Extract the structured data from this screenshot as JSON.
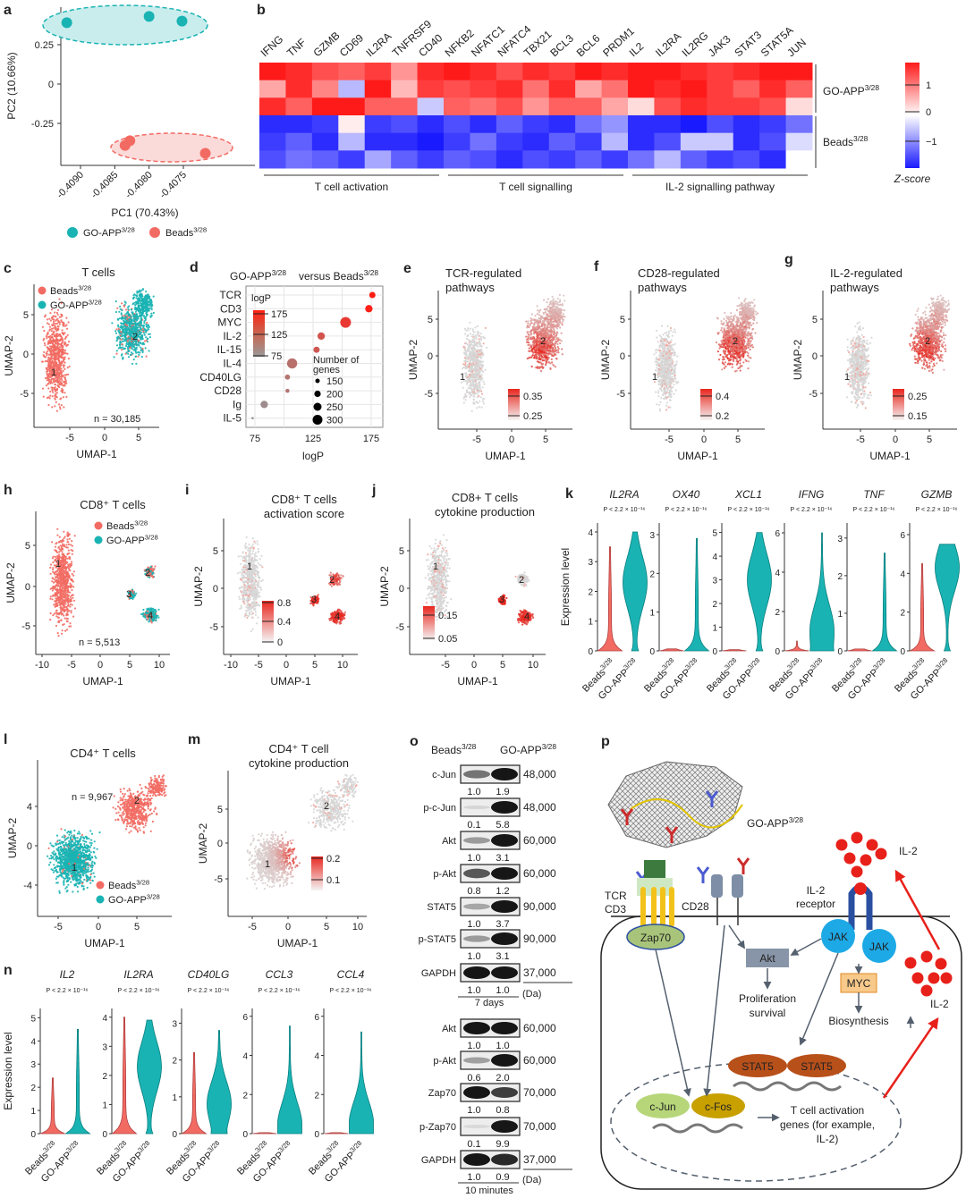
{
  "panel_letters": [
    "a",
    "b",
    "c",
    "d",
    "e",
    "f",
    "g",
    "h",
    "i",
    "j",
    "k",
    "l",
    "m",
    "n",
    "o",
    "p"
  ],
  "common": {
    "go_app": "GO-APP",
    "beads": "Beads",
    "sup": "3/28",
    "umap1": "UMAP-1",
    "umap2": "UMAP-2",
    "expr": "Expression level",
    "pval": "P < 2.2 × 10⁻¹⁶",
    "colors": {
      "go_app": "#1ab3b3",
      "beads": "#f26b63",
      "heat_high": "#ff1a1a",
      "heat_low": "#1a1aff"
    }
  },
  "chart_data": [
    {
      "panel": "a",
      "type": "scatter",
      "xlabel": "PC1 (70.43%)",
      "ylabel": "PC2 (10.66%)",
      "xticks": [
        "-0.4090",
        "-0.4085",
        "-0.4080",
        "-0.4075"
      ],
      "xtick_values": [
        -0.409,
        -0.4085,
        -0.408,
        -0.4075
      ],
      "yticks": [
        "0.25",
        "0",
        "-0.25"
      ],
      "ytick_values": [
        0.25,
        0,
        -0.25
      ],
      "series": [
        {
          "name": "GO-APP",
          "sup": "3/28",
          "color": "#1ab3b3",
          "points": [
            [
              -0.4092,
              0.39
            ],
            [
              -0.408,
              0.43
            ],
            [
              -0.40752,
              0.4
            ]
          ]
        },
        {
          "name": "Beads",
          "sup": "3/28",
          "color": "#f26b63",
          "points": [
            [
              -0.40835,
              -0.39
            ],
            [
              -0.40828,
              -0.36
            ],
            [
              -0.40718,
              -0.44
            ]
          ]
        }
      ]
    },
    {
      "panel": "b",
      "type": "heatmap",
      "columns": [
        "IFNG",
        "TNF",
        "GZMB",
        "CD69",
        "IL2RA",
        "TNFRSF9",
        "CD40",
        "NFKB2",
        "NFATC1",
        "NFATC4",
        "TBX21",
        "BCL3",
        "BCL6",
        "PRDM1",
        "IL2",
        "IL2RA",
        "IL2RG",
        "JAK3",
        "STAT3",
        "STAT5A",
        "JUN"
      ],
      "column_groups": [
        {
          "label": "T cell activation",
          "from": 0,
          "to": 6
        },
        {
          "label": "T cell signalling",
          "from": 7,
          "to": 13
        },
        {
          "label": "IL-2 signalling pathway",
          "from": 14,
          "to": 20
        }
      ],
      "row_groups": [
        {
          "label": "GO-APP",
          "sup": "3/28",
          "rows": 3
        },
        {
          "label": "Beads",
          "sup": "3/28",
          "rows": 3
        }
      ],
      "values": [
        [
          1.3,
          1.2,
          1.0,
          0.9,
          1.1,
          0.6,
          1.2,
          1.3,
          1.2,
          1.0,
          1.2,
          1.1,
          1.3,
          1.2,
          1.3,
          1.3,
          1.2,
          1.1,
          1.2,
          1.3,
          1.3
        ],
        [
          0.5,
          1.2,
          0.7,
          -0.4,
          1.3,
          0.4,
          1.1,
          1.0,
          1.1,
          1.2,
          0.8,
          1.2,
          0.5,
          0.8,
          1.3,
          1.2,
          1.3,
          1.1,
          0.9,
          1.2,
          0.9
        ],
        [
          1.2,
          0.9,
          1.3,
          1.3,
          0.9,
          0.9,
          -0.3,
          0.9,
          0.8,
          1.0,
          0.6,
          0.9,
          0.9,
          0.5,
          0.2,
          1.0,
          1.2,
          1.1,
          1.1,
          1.0,
          0.2
        ],
        [
          -1.2,
          -1.2,
          -1.1,
          0.1,
          -1.1,
          -1.0,
          -1.2,
          -1.0,
          -1.2,
          -0.9,
          -1.1,
          -1.2,
          -0.8,
          -0.6,
          -1.2,
          -1.2,
          -1.3,
          -1.0,
          -1.2,
          -1.1,
          -0.8
        ],
        [
          -1.1,
          -0.9,
          -1.2,
          -0.4,
          -1.2,
          -1.2,
          -1.3,
          -1.1,
          -0.8,
          -1.1,
          -1.2,
          -0.9,
          -1.1,
          -0.4,
          -1.2,
          -1.0,
          -0.3,
          -0.3,
          -1.2,
          -1.0,
          -0.2
        ],
        [
          -1.0,
          -0.8,
          -0.9,
          -1.1,
          -0.5,
          -0.9,
          -1.1,
          -0.9,
          -1.0,
          -1.2,
          -1.0,
          -1.1,
          -0.9,
          -1.1,
          -0.8,
          -0.4,
          -0.9,
          -1.1,
          -1.0,
          -1.2,
          0.0
        ]
      ],
      "colorbar": {
        "label": "Z-score",
        "ticks": [
          "1",
          "0",
          "−1"
        ],
        "tick_values": [
          1,
          0,
          -1
        ],
        "range": [
          -1.4,
          1.4
        ]
      }
    },
    {
      "panel": "c",
      "type": "scatter",
      "subtype": "umap",
      "title": "T cells",
      "n_label": "n = 30,185",
      "xticks": [
        "-5",
        "0",
        "5"
      ],
      "yticks": [
        "5",
        "0",
        "-5"
      ],
      "clusters": [
        "1",
        "2"
      ],
      "legend": [
        {
          "name": "Beads",
          "sup": "3/28"
        },
        {
          "name": "GO-APP",
          "sup": "3/28"
        }
      ]
    },
    {
      "panel": "d",
      "type": "scatter",
      "subtype": "dot",
      "title": {
        "a": "GO-APP",
        "sup1": "3/28",
        "b": " versus Beads",
        "sup2": "3/28"
      },
      "categories": [
        "TCR",
        "CD3",
        "MYC",
        "IL-2",
        "IL-15",
        "IL-4",
        "CD40LG",
        "CD28",
        "Ig",
        "IL-5"
      ],
      "logP": [
        176,
        173,
        153,
        132,
        128,
        107,
        103,
        103,
        83,
        73
      ],
      "genes": [
        170,
        190,
        250,
        190,
        170,
        240,
        150,
        130,
        190,
        100
      ],
      "xticks": [
        "75",
        "125",
        "175"
      ],
      "xtick_values": [
        75,
        125,
        175
      ],
      "xlabel": "logP",
      "color_legend": {
        "title": "logP",
        "ticks": [
          "175",
          "125",
          "75"
        ]
      },
      "size_legend": {
        "title1": "Number of",
        "title2": "genes",
        "values": [
          "150",
          "200",
          "250",
          "300"
        ]
      }
    },
    {
      "panel": "e",
      "type": "scatter",
      "subtype": "umap-feature",
      "title": [
        "TCR-regulated",
        "pathways"
      ],
      "xticks": [
        "-5",
        "0",
        "5"
      ],
      "yticks": [
        "5",
        "0",
        "-5"
      ],
      "clusters": [
        "1",
        "2"
      ],
      "colorbar_ticks": [
        "0.35",
        "0.25"
      ]
    },
    {
      "panel": "f",
      "type": "scatter",
      "subtype": "umap-feature",
      "title": [
        "CD28-regulated",
        "pathways"
      ],
      "xticks": [
        "-5",
        "0",
        "5"
      ],
      "yticks": [
        "5",
        "0",
        "-5"
      ],
      "clusters": [
        "1",
        "2"
      ],
      "colorbar_ticks": [
        "0.4",
        "0.2"
      ]
    },
    {
      "panel": "g",
      "type": "scatter",
      "subtype": "umap-feature",
      "title": [
        "IL-2-regulated",
        "pathways"
      ],
      "xticks": [
        "-5",
        "0",
        "5"
      ],
      "yticks": [
        "5",
        "0",
        "-5"
      ],
      "clusters": [
        "1",
        "2"
      ],
      "colorbar_ticks": [
        "0.25",
        "0.15"
      ]
    },
    {
      "panel": "h",
      "type": "scatter",
      "subtype": "umap",
      "title": "CD8⁺ T cells",
      "n_label": "n = 5,513",
      "xticks": [
        "-10",
        "-5",
        "0",
        "5",
        "10"
      ],
      "yticks": [
        "5",
        "0",
        "-5"
      ],
      "clusters": [
        "1",
        "2",
        "3",
        "4"
      ],
      "legend": [
        {
          "name": "Beads",
          "sup": "3/28"
        },
        {
          "name": "GO-APP",
          "sup": "3/28"
        }
      ]
    },
    {
      "panel": "i",
      "type": "scatter",
      "subtype": "umap-feature",
      "title": [
        "CD8⁺ T cells",
        "activation score"
      ],
      "xticks": [
        "-10",
        "-5",
        "0",
        "5",
        "10"
      ],
      "yticks": [
        "5",
        "0",
        "-5"
      ],
      "clusters": [
        "1",
        "2",
        "3",
        "4"
      ],
      "colorbar_ticks": [
        "0.8",
        "0.4",
        "0"
      ]
    },
    {
      "panel": "j",
      "type": "scatter",
      "subtype": "umap-feature",
      "title": [
        "CD8+ T cells",
        "cytokine production"
      ],
      "xticks": [
        "-5",
        "0",
        "5",
        "10"
      ],
      "yticks": [
        "5",
        "0",
        "-5"
      ],
      "clusters": [
        "1",
        "2",
        "3",
        "4"
      ],
      "colorbar_ticks": [
        "0.15",
        "0.05"
      ]
    },
    {
      "panel": "k",
      "type": "violin",
      "ylabel": "Expression level",
      "groups": [
        "Beads",
        "GO-APP"
      ],
      "sup": "3/28",
      "genes": [
        {
          "name": "IL2RA",
          "yticks": [
            "0",
            "1",
            "2",
            "3",
            "4"
          ],
          "ymax": 4.3,
          "beads": {
            "median": 0.1,
            "max": 3.5
          },
          "go": {
            "median": 2.3,
            "max": 4.0
          }
        },
        {
          "name": "OX40",
          "yticks": [
            "0",
            "1",
            "2",
            "3"
          ],
          "ymax": 3.3,
          "beads": {
            "median": 0.0,
            "max": 0.05
          },
          "go": {
            "median": 0.3,
            "max": 2.9
          }
        },
        {
          "name": "XCL1",
          "yticks": [
            "0",
            "1",
            "2",
            "3",
            "4",
            "5"
          ],
          "ymax": 5.4,
          "beads": {
            "median": 0.0,
            "max": 0.05
          },
          "go": {
            "median": 3.0,
            "max": 5.0
          }
        },
        {
          "name": "IFNG",
          "yticks": [
            "0",
            "2",
            "4",
            "6"
          ],
          "ymax": 6.5,
          "beads": {
            "median": 0.05,
            "max": 0.5
          },
          "go": {
            "median": 1.0,
            "max": 6.0
          }
        },
        {
          "name": "TNF",
          "yticks": [
            "0",
            "1",
            "2",
            "3"
          ],
          "ymax": 3.4,
          "beads": {
            "median": 0.0,
            "max": 0.05
          },
          "go": {
            "median": 0.2,
            "max": 2.6
          }
        },
        {
          "name": "GZMB",
          "yticks": [
            "0",
            "2",
            "4",
            "6"
          ],
          "ymax": 6.6,
          "beads": {
            "median": 0.3,
            "max": 4.5
          },
          "go": {
            "median": 4.3,
            "max": 5.5
          }
        }
      ]
    },
    {
      "panel": "l",
      "type": "scatter",
      "subtype": "umap",
      "title": "CD4⁺ T cells",
      "n_label": "n = 9,967",
      "xticks": [
        "-5",
        "0",
        "5"
      ],
      "yticks": [
        "4",
        "0",
        "-4"
      ],
      "clusters": [
        "1",
        "2"
      ],
      "legend": [
        {
          "name": "Beads",
          "sup": "3/28"
        },
        {
          "name": "GO-APP",
          "sup": "3/28"
        }
      ]
    },
    {
      "panel": "m",
      "type": "scatter",
      "subtype": "umap-feature",
      "title": [
        "CD4⁺ T cell",
        "cytokine production"
      ],
      "xticks": [
        "-5",
        "0",
        "5",
        "10"
      ],
      "yticks": [
        "5",
        "0",
        "-5"
      ],
      "clusters": [
        "1",
        "2"
      ],
      "colorbar_ticks": [
        "0.2",
        "0.1"
      ]
    },
    {
      "panel": "n",
      "type": "violin",
      "ylabel": "Expression level",
      "groups": [
        "Beads",
        "GO-APP"
      ],
      "sup": "3/28",
      "genes": [
        {
          "name": "IL2",
          "yticks": [
            "0",
            "1",
            "2",
            "3",
            "4",
            "5"
          ],
          "ymax": 5.4,
          "beads": {
            "median": 0.0,
            "max": 2.4
          },
          "go": {
            "median": 0.2,
            "max": 4.5
          }
        },
        {
          "name": "IL2RA",
          "yticks": [
            "0",
            "1",
            "2",
            "3",
            "4"
          ],
          "ymax": 4.3,
          "beads": {
            "median": 0.1,
            "max": 4.0
          },
          "go": {
            "median": 2.3,
            "max": 3.9
          }
        },
        {
          "name": "CD40LG",
          "yticks": [
            "0",
            "1",
            "2",
            "3"
          ],
          "ymax": 3.4,
          "beads": {
            "median": 0.1,
            "max": 2.2
          },
          "go": {
            "median": 0.8,
            "max": 2.8
          }
        },
        {
          "name": "CCL3",
          "yticks": [
            "0",
            "2",
            "4",
            "6"
          ],
          "ymax": 6.4,
          "beads": {
            "median": 0.0,
            "max": 0.05
          },
          "go": {
            "median": 0.4,
            "max": 5.5
          }
        },
        {
          "name": "CCL4",
          "yticks": [
            "0",
            "2",
            "4",
            "6"
          ],
          "ymax": 6.4,
          "beads": {
            "median": 0.0,
            "max": 0.05
          },
          "go": {
            "median": 0.5,
            "max": 5.2
          }
        }
      ]
    },
    {
      "panel": "o",
      "type": "table",
      "subtype": "western-blot",
      "columns": [
        "Beads",
        "GO-APP"
      ],
      "sup": "3/28",
      "unit": "(Da)",
      "blocks": [
        {
          "label": "7 days",
          "rows": [
            {
              "protein": "c-Jun",
              "values": [
                "1.0",
                "1.9"
              ],
              "mw": "48,000"
            },
            {
              "protein": "p-c-Jun",
              "values": [
                "0.1",
                "5.8"
              ],
              "mw": "48,000"
            },
            {
              "protein": "Akt",
              "values": [
                "1.0",
                "3.1"
              ],
              "mw": "60,000"
            },
            {
              "protein": "p-Akt",
              "values": [
                "0.8",
                "1.2"
              ],
              "mw": "60,000"
            },
            {
              "protein": "STAT5",
              "values": [
                "1.0",
                "3.7"
              ],
              "mw": "90,000"
            },
            {
              "protein": "p-STAT5",
              "values": [
                "1.0",
                "3.1"
              ],
              "mw": "90,000"
            },
            {
              "protein": "GAPDH",
              "values": [
                "1.0",
                "1.0"
              ],
              "mw": "37,000"
            }
          ]
        },
        {
          "label": "10 minutes",
          "rows": [
            {
              "protein": "Akt",
              "values": [
                "1.0",
                "1.0"
              ],
              "mw": "60,000"
            },
            {
              "protein": "p-Akt",
              "values": [
                "0.6",
                "2.0"
              ],
              "mw": "60,000"
            },
            {
              "protein": "Zap70",
              "values": [
                "1.0",
                "0.8"
              ],
              "mw": "70,000"
            },
            {
              "protein": "p-Zap70",
              "values": [
                "0.1",
                "9.9"
              ],
              "mw": "70,000"
            },
            {
              "protein": "GAPDH",
              "values": [
                "1.0",
                "0.9"
              ],
              "mw": "37,000"
            }
          ]
        }
      ]
    }
  ],
  "diagram_p": {
    "go_app": "GO-APP",
    "sup": "3/28",
    "tcr": "TCR",
    "cd3": "CD3",
    "cd28": "CD28",
    "il2_receptor_1": "IL-2",
    "il2_receptor_2": "receptor",
    "zap70": "Zap70",
    "akt": "Akt",
    "jak": "JAK",
    "myc": "MYC",
    "proliferation_1": "Proliferation",
    "proliferation_2": "survival",
    "biosynthesis": "Biosynthesis",
    "stat5": "STAT5",
    "cjun": "c-Jun",
    "cfos": "c-Fos",
    "genes_1": "T cell activation",
    "genes_2": "genes (for example,",
    "genes_3": "IL-2)",
    "il2": "IL-2"
  }
}
